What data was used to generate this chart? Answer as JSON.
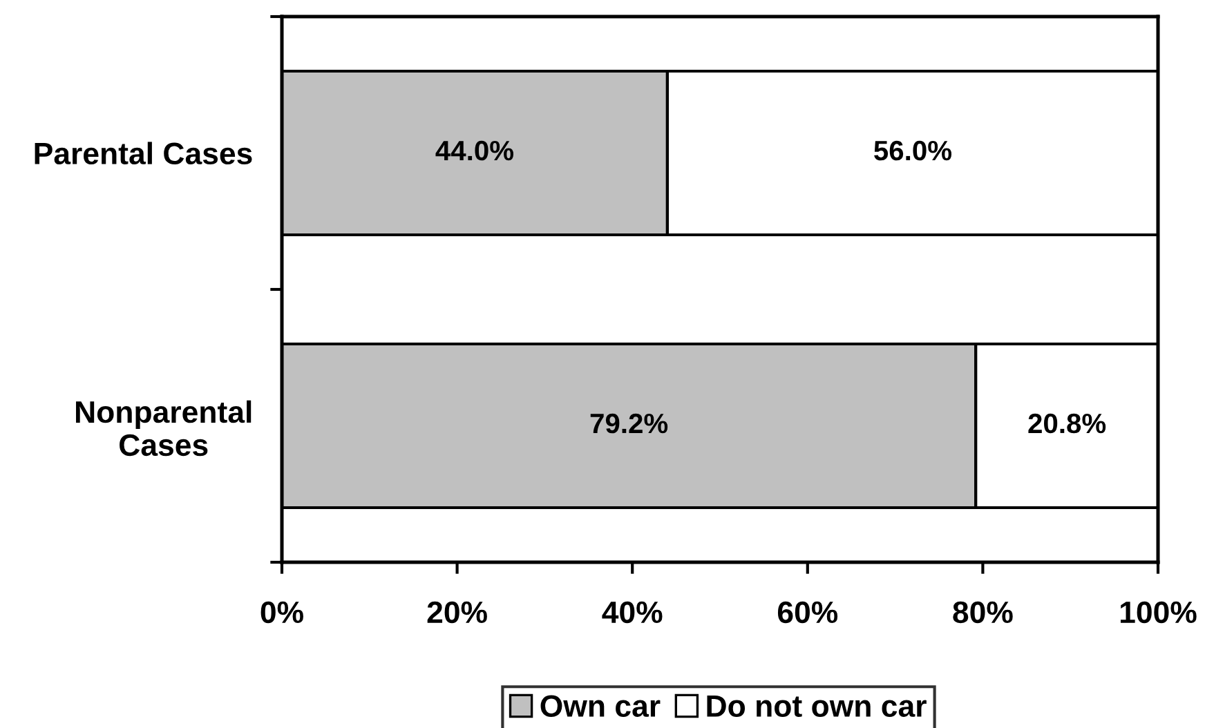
{
  "chart_data": {
    "type": "bar",
    "orientation": "horizontal",
    "stacked": true,
    "categories": [
      "Parental Cases",
      "Nonparental\nCases"
    ],
    "series": [
      {
        "name": "Own car",
        "color": "#c0c0c0",
        "values": [
          44.0,
          79.2
        ],
        "value_labels": [
          "44.0%",
          "79.2%"
        ]
      },
      {
        "name": "Do not own car",
        "color": "#ffffff",
        "values": [
          56.0,
          20.8
        ],
        "value_labels": [
          "56.0%",
          "20.8%"
        ]
      }
    ],
    "xlim": [
      0,
      100
    ],
    "xticks": [
      {
        "value": 0,
        "label": "0%"
      },
      {
        "value": 20,
        "label": "20%"
      },
      {
        "value": 40,
        "label": "40%"
      },
      {
        "value": 60,
        "label": "60%"
      },
      {
        "value": 80,
        "label": "80%"
      },
      {
        "value": 100,
        "label": "100%"
      }
    ],
    "grid": false,
    "legend": "bottom"
  }
}
